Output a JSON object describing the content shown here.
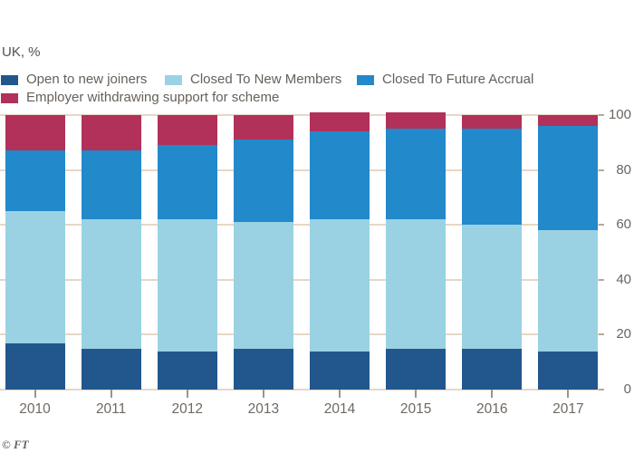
{
  "title": "UK, %",
  "footer": "© FT",
  "colors": {
    "background": "#ffffff",
    "gridline": "#e6d7c6",
    "axis_text": "#6b645e",
    "legend_text": "#66605a",
    "open": "#22578d",
    "closed_new_members": "#9ad2e3",
    "closed_future_accrual": "#2289cb",
    "withdrawing": "#b1315a"
  },
  "chart_data": {
    "type": "bar",
    "stacked": true,
    "title": "UK, %",
    "categories": [
      "2010",
      "2011",
      "2012",
      "2013",
      "2014",
      "2015",
      "2016",
      "2017"
    ],
    "series": [
      {
        "name": "Open to new joiners",
        "color": "#22578d",
        "values": [
          17,
          15,
          14,
          15,
          14,
          15,
          15,
          14
        ]
      },
      {
        "name": "Closed To New Members",
        "color": "#9ad2e3",
        "values": [
          48,
          47,
          48,
          46,
          48,
          47,
          45,
          44
        ]
      },
      {
        "name": "Closed To Future Accrual",
        "color": "#2289cb",
        "values": [
          22,
          25,
          27,
          30,
          32,
          33,
          35,
          38
        ]
      },
      {
        "name": "Employer withdrawing support for scheme",
        "color": "#b1315a",
        "values": [
          13,
          13,
          11,
          9,
          7,
          6,
          5,
          4
        ]
      }
    ],
    "yticks": [
      0,
      20,
      40,
      60,
      80,
      100
    ],
    "ylim": [
      0,
      100
    ],
    "grid": true,
    "legend_position": "top",
    "y_axis_side": "right"
  }
}
